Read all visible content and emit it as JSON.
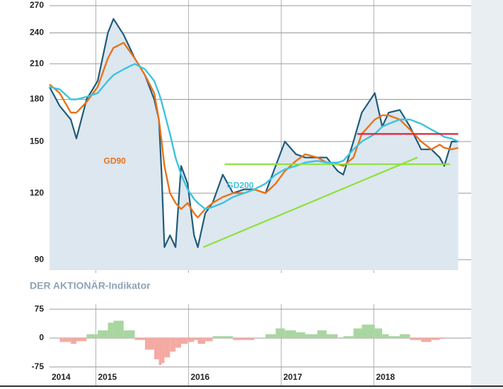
{
  "chart_data": [
    {
      "type": "line",
      "yscale": "log",
      "ylim": [
        86,
        270
      ],
      "yticks": [
        90,
        120,
        150,
        180,
        210,
        240,
        270
      ],
      "xlim": [
        2014.5,
        2019.05
      ],
      "grid": true,
      "x": [
        2014.5,
        2014.61,
        2014.73,
        2014.79,
        2014.9,
        2015.02,
        2015.13,
        2015.19,
        2015.3,
        2015.42,
        2015.53,
        2015.63,
        2015.68,
        2015.71,
        2015.74,
        2015.8,
        2015.86,
        2015.92,
        2015.99,
        2016.06,
        2016.1,
        2016.18,
        2016.26,
        2016.37,
        2016.48,
        2016.6,
        2016.71,
        2016.83,
        2016.94,
        2017.04,
        2017.16,
        2017.26,
        2017.39,
        2017.49,
        2017.61,
        2017.67,
        2017.78,
        2017.87,
        2018.01,
        2018.09,
        2018.16,
        2018.28,
        2018.39,
        2018.51,
        2018.62,
        2018.71,
        2018.76,
        2018.84,
        2018.91
      ],
      "price": {
        "color": "#1f5c7a",
        "fill": "#dde7ef",
        "values": [
          190,
          175,
          165,
          152,
          180,
          195,
          240,
          255,
          238,
          215,
          200,
          180,
          165,
          130,
          95,
          100,
          95,
          135,
          125,
          100,
          95,
          110,
          115,
          130,
          120,
          122,
          122,
          120,
          135,
          150,
          142,
          140,
          140,
          140,
          132,
          130,
          150,
          170,
          185,
          160,
          170,
          172,
          160,
          145,
          145,
          140,
          135,
          150,
          150
        ]
      },
      "series": [
        {
          "name": "GD90",
          "color": "#e8731a",
          "values": [
            192,
            185,
            170,
            170,
            178,
            190,
            215,
            225,
            230,
            215,
            200,
            185,
            165,
            150,
            135,
            120,
            115,
            112,
            115,
            110,
            108,
            112,
            115,
            118,
            120,
            120,
            122,
            120,
            125,
            132,
            138,
            142,
            140,
            137,
            136,
            135,
            140,
            155,
            165,
            168,
            168,
            165,
            158,
            150,
            145,
            148,
            146,
            145,
            146
          ]
        },
        {
          "name": "GD200",
          "color": "#3cc3e0",
          "values": [
            190,
            188,
            180,
            180,
            182,
            185,
            195,
            200,
            205,
            210,
            205,
            195,
            185,
            178,
            170,
            155,
            140,
            130,
            122,
            117,
            115,
            112,
            113,
            115,
            118,
            120,
            122,
            125,
            130,
            133,
            135,
            137,
            138,
            137,
            137,
            138,
            145,
            150,
            155,
            160,
            162,
            165,
            165,
            162,
            158,
            155,
            153,
            152,
            150
          ]
        }
      ],
      "lines": [
        {
          "color": "#8ee03a",
          "x": [
            2016.16,
            2018.47
          ],
          "values": [
            95,
            140
          ]
        },
        {
          "color": "#8ee03a",
          "x": [
            2016.39,
            2018.82
          ],
          "values": [
            136,
            136
          ]
        },
        {
          "color": "#e0203a",
          "x": [
            2017.82,
            2018.91
          ],
          "values": [
            155,
            155
          ]
        }
      ]
    },
    {
      "type": "area",
      "title": "DER AKTIONÄR-Indikator",
      "ylim": [
        -88,
        88
      ],
      "yticks": [
        75,
        0,
        -75
      ],
      "xlim": [
        2014.5,
        2019.05
      ],
      "xticks": [
        {
          "value": 2014.5,
          "label": "2014"
        },
        2015,
        2016,
        2017,
        2018
      ],
      "positive_color": "#a9d6a0",
      "negative_color": "#f4aaa2",
      "x": [
        2014.5,
        2014.61,
        2014.73,
        2014.79,
        2014.9,
        2015.02,
        2015.13,
        2015.19,
        2015.3,
        2015.42,
        2015.53,
        2015.63,
        2015.68,
        2015.71,
        2015.74,
        2015.8,
        2015.86,
        2015.92,
        2015.99,
        2016.06,
        2016.1,
        2016.18,
        2016.26,
        2016.37,
        2016.48,
        2016.6,
        2016.71,
        2016.83,
        2016.94,
        2017.04,
        2017.16,
        2017.26,
        2017.39,
        2017.49,
        2017.61,
        2017.67,
        2017.78,
        2017.87,
        2018.01,
        2018.09,
        2018.16,
        2018.28,
        2018.39,
        2018.51,
        2018.62,
        2018.71,
        2018.76,
        2018.84,
        2018.91
      ],
      "values": [
        0,
        -10,
        -15,
        -8,
        10,
        20,
        40,
        45,
        20,
        -5,
        -30,
        -55,
        -70,
        -65,
        -50,
        -35,
        -25,
        -15,
        -10,
        -5,
        -15,
        -8,
        5,
        5,
        -5,
        -5,
        0,
        10,
        25,
        20,
        15,
        10,
        20,
        10,
        0,
        5,
        25,
        35,
        25,
        10,
        5,
        10,
        -5,
        -10,
        -5,
        -2,
        0,
        0,
        0
      ]
    }
  ]
}
